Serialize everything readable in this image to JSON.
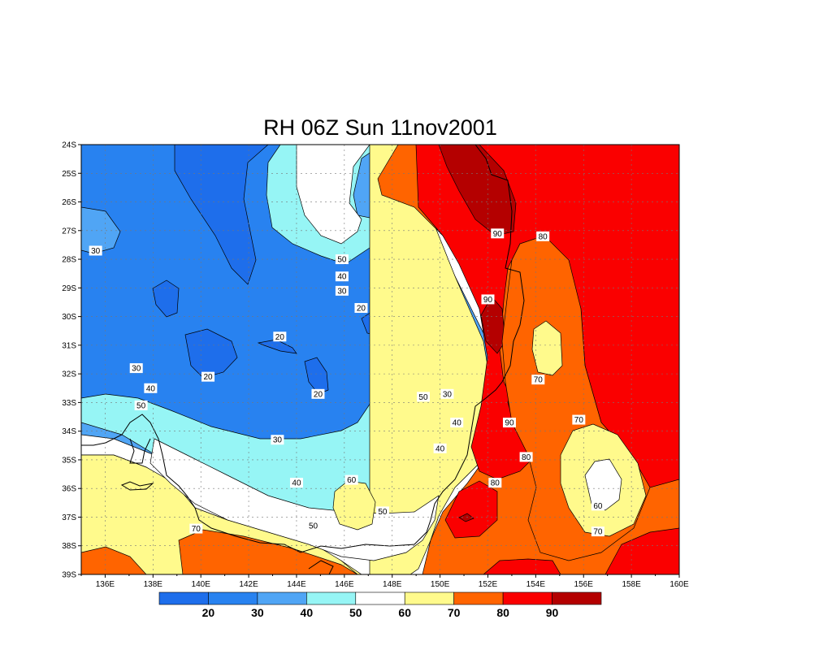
{
  "title": "RH 06Z Sun 11nov2001",
  "chart_data": {
    "type": "heatmap",
    "variable": "RH",
    "title": "RH 06Z Sun 11nov2001",
    "lon_range": [
      135,
      160
    ],
    "lat_range": [
      -39,
      -24
    ],
    "x_tick_labels": [
      "136E",
      "138E",
      "140E",
      "142E",
      "144E",
      "146E",
      "148E",
      "150E",
      "152E",
      "154E",
      "156E",
      "158E",
      "160E"
    ],
    "y_tick_labels": [
      "24S",
      "25S",
      "26S",
      "27S",
      "28S",
      "29S",
      "30S",
      "31S",
      "32S",
      "33S",
      "34S",
      "35S",
      "36S",
      "37S",
      "38S",
      "39S"
    ],
    "grid": true,
    "colorbar": {
      "labels": [
        "20",
        "30",
        "40",
        "50",
        "60",
        "70",
        "80",
        "90"
      ],
      "bins": [
        {
          "range": "<20",
          "color": "#1e6eeb"
        },
        {
          "range": "20-30",
          "color": "#2882f0"
        },
        {
          "range": "30-40",
          "color": "#50a5f5"
        },
        {
          "range": "40-50",
          "color": "#96f5f5"
        },
        {
          "range": "50-60",
          "color": "#ffffff"
        },
        {
          "range": "60-70",
          "color": "#fffa8c"
        },
        {
          "range": "70-80",
          "color": "#ff6400"
        },
        {
          "range": "80-90",
          "color": "#fa0000"
        },
        {
          "range": ">90",
          "color": "#b40000"
        }
      ]
    },
    "contour_labels": [
      {
        "text": "30",
        "lon": 135.6,
        "lat": -27.7
      },
      {
        "text": "50",
        "lon": 145.9,
        "lat": -28.0
      },
      {
        "text": "40",
        "lon": 145.9,
        "lat": -28.6
      },
      {
        "text": "30",
        "lon": 145.9,
        "lat": -29.1
      },
      {
        "text": "20",
        "lon": 146.7,
        "lat": -29.7
      },
      {
        "text": "20",
        "lon": 143.3,
        "lat": -30.7
      },
      {
        "text": "30",
        "lon": 137.3,
        "lat": -31.8
      },
      {
        "text": "20",
        "lon": 140.3,
        "lat": -32.1
      },
      {
        "text": "40",
        "lon": 137.9,
        "lat": -32.5
      },
      {
        "text": "20",
        "lon": 144.9,
        "lat": -32.7
      },
      {
        "text": "50",
        "lon": 137.5,
        "lat": -33.1
      },
      {
        "text": "50",
        "lon": 149.3,
        "lat": -32.8
      },
      {
        "text": "30",
        "lon": 150.3,
        "lat": -32.7
      },
      {
        "text": "40",
        "lon": 150.7,
        "lat": -33.7
      },
      {
        "text": "30",
        "lon": 143.2,
        "lat": -34.3
      },
      {
        "text": "40",
        "lon": 150.0,
        "lat": -34.6
      },
      {
        "text": "40",
        "lon": 144.0,
        "lat": -35.8
      },
      {
        "text": "60",
        "lon": 146.3,
        "lat": -35.7
      },
      {
        "text": "50",
        "lon": 147.6,
        "lat": -36.8
      },
      {
        "text": "50",
        "lon": 144.7,
        "lat": -37.3
      },
      {
        "text": "70",
        "lon": 139.8,
        "lat": -37.4
      },
      {
        "text": "90",
        "lon": 152.4,
        "lat": -27.1
      },
      {
        "text": "80",
        "lon": 154.3,
        "lat": -27.2
      },
      {
        "text": "90",
        "lon": 152.0,
        "lat": -29.4
      },
      {
        "text": "70",
        "lon": 154.1,
        "lat": -32.2
      },
      {
        "text": "80",
        "lon": 152.3,
        "lat": -35.8
      },
      {
        "text": "90",
        "lon": 152.9,
        "lat": -33.7
      },
      {
        "text": "80",
        "lon": 153.6,
        "lat": -34.9
      },
      {
        "text": "70",
        "lon": 155.8,
        "lat": -33.6
      },
      {
        "text": "60",
        "lon": 156.6,
        "lat": -36.6
      },
      {
        "text": "70",
        "lon": 156.6,
        "lat": -37.5
      }
    ]
  }
}
